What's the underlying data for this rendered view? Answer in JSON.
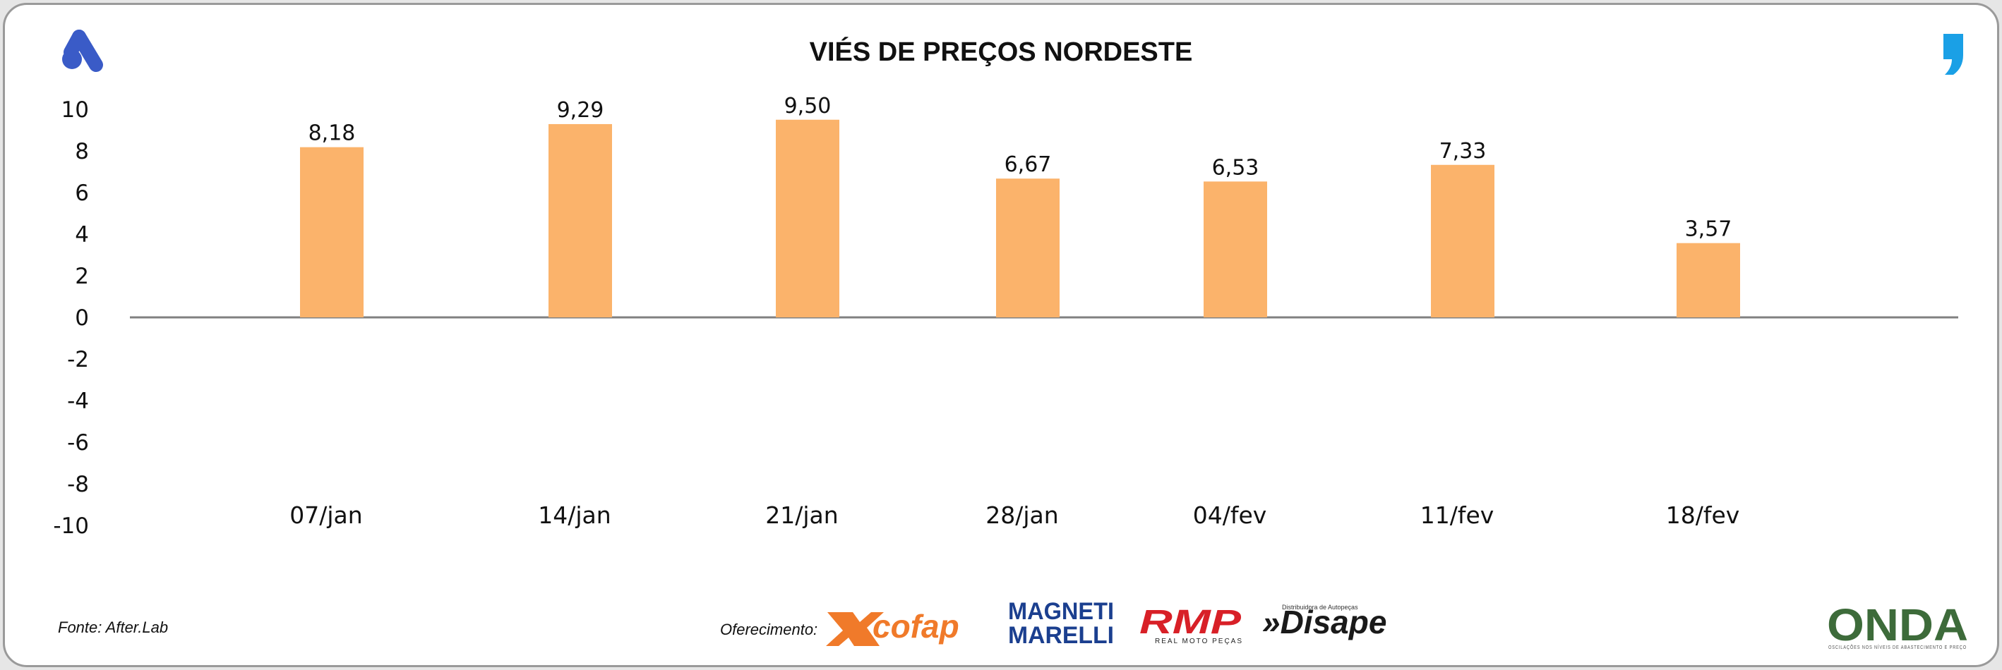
{
  "colors": {
    "bar": "#fbb36b",
    "axis": "#808080",
    "text": "#111111",
    "brand_blue": "#3a5bc7",
    "quote_blue": "#1aa0e6"
  },
  "icons": {
    "top_left": "brand-a-logo-icon",
    "top_right": "quote-mark-icon"
  },
  "chart_data": {
    "type": "bar",
    "title": "VIÉS DE PREÇOS NORDESTE",
    "xlabel": "",
    "ylabel": "",
    "categories": [
      "07/jan",
      "14/jan",
      "21/jan",
      "28/jan",
      "04/fev",
      "11/fev",
      "18/fev"
    ],
    "values": [
      8.18,
      9.29,
      9.5,
      6.67,
      6.53,
      7.33,
      3.57
    ],
    "data_labels": [
      "8,18",
      "9,29",
      "9,50",
      "6,67",
      "6,53",
      "7,33",
      "3,57"
    ],
    "ylim": [
      -10,
      10
    ],
    "yticks": [
      10,
      8,
      6,
      4,
      2,
      0,
      -2,
      -4,
      -6,
      -8,
      -10
    ],
    "grid": false,
    "legend": "none"
  },
  "footer": {
    "source": "Fonte: After.Lab",
    "sponsor_label": "Oferecimento:",
    "logos": {
      "cofap": "cofap",
      "magneti_line1": "MAGNETI",
      "magneti_line2": "MARELLI",
      "rmp": "RMP",
      "rmp_sub": "REAL MOTO PEÇAS",
      "disape": "»Disape",
      "disape_sub": "Distribuidora de Autopeças",
      "onda": "ONDA",
      "onda_sub": "OSCILAÇÕES NOS NÍVEIS DE ABASTECIMENTO E PREÇO"
    }
  }
}
